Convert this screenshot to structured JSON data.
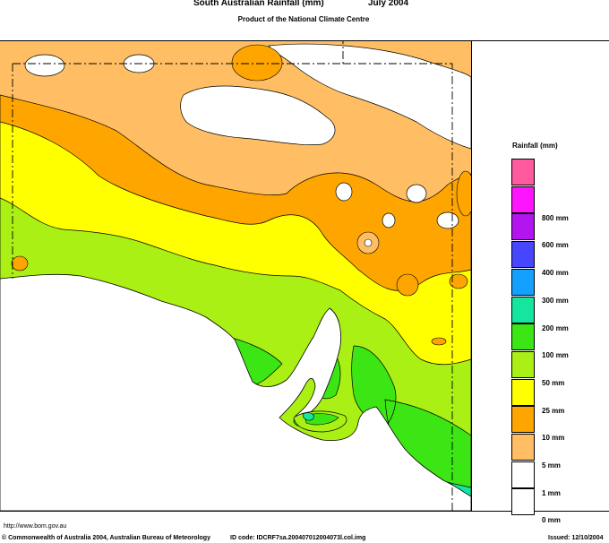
{
  "header": {
    "title": "South Australian Rainfall (mm)",
    "period": "July 2004",
    "subtitle": "Product of the National Climate Centre"
  },
  "legend": {
    "title": "Rainfall (mm)",
    "items": [
      {
        "label": "",
        "color": "#ff5a9e"
      },
      {
        "label": "800 mm",
        "color": "#ff14ff"
      },
      {
        "label": "600 mm",
        "color": "#b414f0"
      },
      {
        "label": "400 mm",
        "color": "#4646ff"
      },
      {
        "label": "300 mm",
        "color": "#14a0ff"
      },
      {
        "label": "200 mm",
        "color": "#14e6a0"
      },
      {
        "label": "100 mm",
        "color": "#3ce614"
      },
      {
        "label": "50 mm",
        "color": "#aaf014"
      },
      {
        "label": "25 mm",
        "color": "#ffff00"
      },
      {
        "label": "10 mm",
        "color": "#ffa500"
      },
      {
        "label": "5 mm",
        "color": "#ffbe64"
      },
      {
        "label": "1 mm",
        "color": "#ffffff"
      },
      {
        "label": "0 mm",
        "color": "#ffffff"
      }
    ]
  },
  "footer": {
    "url": "http://www.bom.gov.au",
    "copyright": "© Commonwealth of Australia 2004, Australian Bureau of Meteorology",
    "id_code": "ID code: IDCRF7sa.200407012004073l.col.img",
    "issued": "Issued: 12/10/2004"
  },
  "colors": {
    "zone_white": "#ffffff",
    "zone_1_5": "#ffbe64",
    "zone_5_10": "#ffa500",
    "zone_10_25": "#ffff00",
    "zone_25_50": "#aaf014",
    "zone_50_100": "#3ce614",
    "zone_100_200": "#14e6a0"
  }
}
